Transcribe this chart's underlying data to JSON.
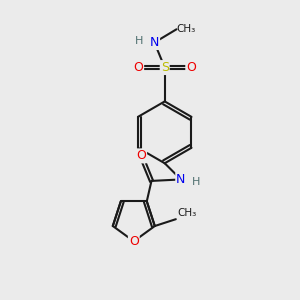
{
  "bg_color": "#ebebeb",
  "bond_color": "#1a1a1a",
  "atom_colors": {
    "N": "#0000ee",
    "O": "#ee0000",
    "S": "#bbbb00",
    "H": "#507070",
    "C": "#1a1a1a"
  },
  "figsize": [
    3.0,
    3.0
  ],
  "dpi": 100
}
